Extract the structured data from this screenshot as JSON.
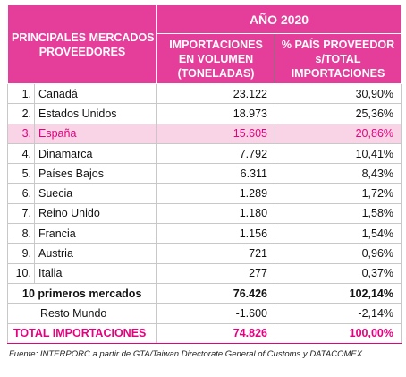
{
  "table": {
    "header": {
      "left": [
        "PRINCIPALES MERCADOS",
        "PROVEEDORES"
      ],
      "year": "AÑO 2020",
      "col1": [
        "IMPORTACIONES",
        "EN VOLUMEN",
        "(TONELADAS)"
      ],
      "col2": [
        "% PAÍS PROVEEDOR",
        "s/TOTAL",
        "IMPORTACIONES"
      ]
    },
    "rows": [
      [
        "1.",
        "Canadá",
        "23.122",
        "30,90%"
      ],
      [
        "2.",
        "Estados Unidos",
        "18.973",
        "25,36%"
      ],
      [
        "3.",
        "España",
        "15.605",
        "20,86%"
      ],
      [
        "4.",
        "Dinamarca",
        "7.792",
        "10,41%"
      ],
      [
        "5.",
        "Países Bajos",
        "6.311",
        "8,43%"
      ],
      [
        "6.",
        "Suecia",
        "1.289",
        "1,72%"
      ],
      [
        "7.",
        "Reino Unido",
        "1.180",
        "1,58%"
      ],
      [
        "8.",
        "Francia",
        "1.156",
        "1,54%"
      ],
      [
        "9.",
        "Austria",
        "721",
        "0,96%"
      ],
      [
        "10.",
        "Italia",
        "277",
        "0,37%"
      ]
    ],
    "summary": [
      [
        "10 primeros mercados",
        "76.426",
        "102,14%"
      ],
      [
        "Resto Mundo",
        "-1.600",
        "-2,14%"
      ]
    ],
    "total": [
      "TOTAL IMPORTACIONES",
      "74.826",
      "100,00%"
    ]
  },
  "source": "Fuente: INTERPORC a partir de GTA/Taiwan Directorate General of Customs y DATACOMEX"
}
